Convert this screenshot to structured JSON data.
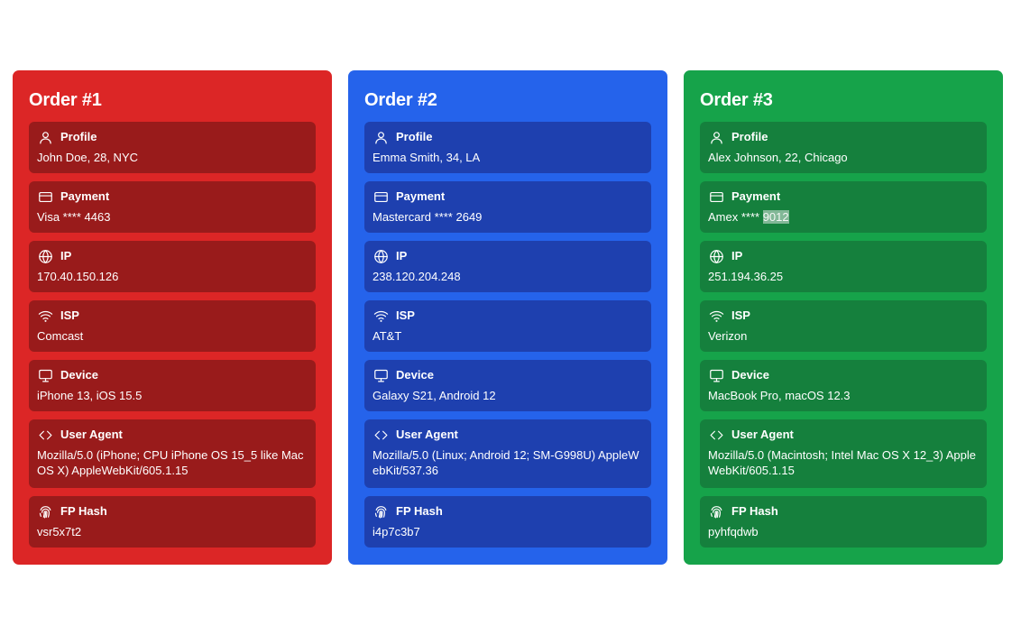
{
  "colors": {
    "card_red": "#dc2626",
    "inner_red": "#991b1b",
    "card_blue": "#2563eb",
    "inner_blue": "#1e40af",
    "card_green": "#16a34a",
    "inner_green": "#15803d"
  },
  "orders": [
    {
      "title": "Order #1",
      "profile": {
        "label": "Profile",
        "icon": "user-icon",
        "value": "John Doe, 28, NYC"
      },
      "payment": {
        "label": "Payment",
        "icon": "credit-card-icon",
        "value": "Visa **** 4463"
      },
      "ip": {
        "label": "IP",
        "icon": "globe-icon",
        "value": "170.40.150.126"
      },
      "isp": {
        "label": "ISP",
        "icon": "wifi-icon",
        "value": "Comcast"
      },
      "device": {
        "label": "Device",
        "icon": "monitor-icon",
        "value": "iPhone 13, iOS 15.5"
      },
      "user_agent": {
        "label": "User Agent",
        "icon": "code-icon",
        "value": "Mozilla/5.0 (iPhone; CPU iPhone OS 15_5 like Mac OS X) AppleWebKit/605.1.15"
      },
      "fp_hash": {
        "label": "FP Hash",
        "icon": "fingerprint-icon",
        "value": "vsr5x7t2"
      }
    },
    {
      "title": "Order #2",
      "profile": {
        "label": "Profile",
        "icon": "user-icon",
        "value": "Emma Smith, 34, LA"
      },
      "payment": {
        "label": "Payment",
        "icon": "credit-card-icon",
        "value": "Mastercard **** 2649"
      },
      "ip": {
        "label": "IP",
        "icon": "globe-icon",
        "value": "238.120.204.248"
      },
      "isp": {
        "label": "ISP",
        "icon": "wifi-icon",
        "value": "AT&T"
      },
      "device": {
        "label": "Device",
        "icon": "monitor-icon",
        "value": "Galaxy S21, Android 12"
      },
      "user_agent": {
        "label": "User Agent",
        "icon": "code-icon",
        "value": "Mozilla/5.0 (Linux; Android 12; SM-G998U) AppleWebKit/537.36"
      },
      "fp_hash": {
        "label": "FP Hash",
        "icon": "fingerprint-icon",
        "value": "i4p7c3b7"
      }
    },
    {
      "title": "Order #3",
      "profile": {
        "label": "Profile",
        "icon": "user-icon",
        "value": "Alex Johnson, 22, Chicago"
      },
      "payment": {
        "label": "Payment",
        "icon": "credit-card-icon",
        "value_prefix": "Amex **** ",
        "value_selected": "9012"
      },
      "ip": {
        "label": "IP",
        "icon": "globe-icon",
        "value": "251.194.36.25"
      },
      "isp": {
        "label": "ISP",
        "icon": "wifi-icon",
        "value": "Verizon"
      },
      "device": {
        "label": "Device",
        "icon": "monitor-icon",
        "value": "MacBook Pro, macOS 12.3"
      },
      "user_agent": {
        "label": "User Agent",
        "icon": "code-icon",
        "value": "Mozilla/5.0 (Macintosh; Intel Mac OS X 12_3) AppleWebKit/605.1.15"
      },
      "fp_hash": {
        "label": "FP Hash",
        "icon": "fingerprint-icon",
        "value": "pyhfqdwb"
      }
    }
  ]
}
